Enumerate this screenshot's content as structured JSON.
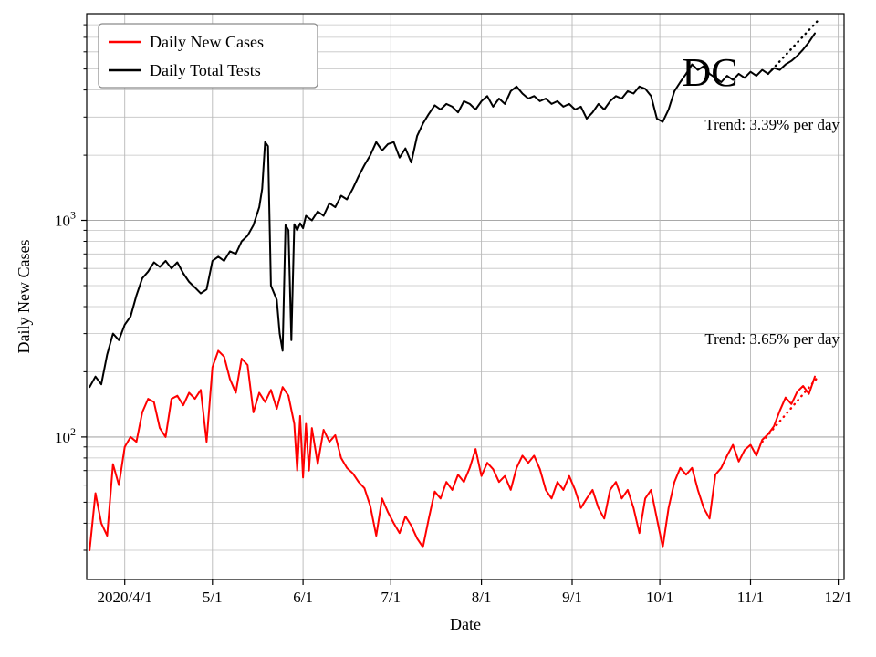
{
  "chart_data": {
    "type": "line",
    "title": "",
    "watermark": "DC",
    "xlabel": "Date",
    "ylabel": "Daily New Cases",
    "yscale": "log",
    "xlim_days": [
      -3,
      256
    ],
    "ylim": [
      22,
      9000
    ],
    "grid": true,
    "x_ticks": [
      {
        "day": 10,
        "label": "2020/4/1"
      },
      {
        "day": 40,
        "label": "5/1"
      },
      {
        "day": 71,
        "label": "6/1"
      },
      {
        "day": 101,
        "label": "7/1"
      },
      {
        "day": 132,
        "label": "8/1"
      },
      {
        "day": 163,
        "label": "9/1"
      },
      {
        "day": 193,
        "label": "10/1"
      },
      {
        "day": 224,
        "label": "11/1"
      },
      {
        "day": 254,
        "label": "12/1"
      }
    ],
    "y_ticks": [
      {
        "value": 100,
        "label": "10",
        "exponent": "2"
      },
      {
        "value": 1000,
        "label": "10",
        "exponent": "3"
      }
    ],
    "legend": {
      "position": "upper-left",
      "entries": [
        {
          "label": "Daily New Cases",
          "color": "#ff0000"
        },
        {
          "label": "Daily Total Tests",
          "color": "#000000"
        }
      ]
    },
    "annotations": [
      {
        "text": "Trend: 3.39% per day",
        "series": "Daily Total Tests"
      },
      {
        "text": "Trend: 3.65% per day",
        "series": "Daily New Cases"
      }
    ],
    "series": [
      {
        "name": "Daily New Cases",
        "color": "#ff0000",
        "x": [
          -2,
          0,
          2,
          4,
          6,
          8,
          10,
          12,
          14,
          16,
          18,
          20,
          22,
          24,
          26,
          28,
          30,
          32,
          34,
          36,
          38,
          40,
          42,
          44,
          46,
          48,
          50,
          52,
          54,
          56,
          58,
          60,
          62,
          64,
          66,
          68,
          69,
          70,
          71,
          72,
          73,
          74,
          76,
          78,
          80,
          82,
          84,
          86,
          88,
          90,
          92,
          94,
          96,
          98,
          100,
          102,
          104,
          106,
          108,
          110,
          112,
          114,
          116,
          118,
          120,
          122,
          124,
          126,
          128,
          130,
          132,
          134,
          136,
          138,
          140,
          142,
          144,
          146,
          148,
          150,
          152,
          154,
          156,
          158,
          160,
          162,
          164,
          166,
          168,
          170,
          172,
          174,
          176,
          178,
          180,
          182,
          184,
          186,
          188,
          190,
          192,
          194,
          196,
          198,
          200,
          202,
          204,
          206,
          208,
          210,
          212,
          214,
          216,
          218,
          220,
          222,
          224,
          226,
          228,
          230,
          232,
          234,
          236,
          238,
          240,
          242,
          244,
          246
        ],
        "y": [
          30,
          55,
          40,
          35,
          75,
          60,
          90,
          100,
          95,
          130,
          150,
          145,
          110,
          100,
          150,
          155,
          140,
          160,
          150,
          165,
          95,
          210,
          250,
          235,
          185,
          160,
          230,
          215,
          130,
          160,
          145,
          165,
          135,
          170,
          155,
          115,
          70,
          125,
          65,
          115,
          70,
          110,
          75,
          108,
          95,
          102,
          80,
          72,
          68,
          62,
          58,
          48,
          35,
          52,
          45,
          40,
          36,
          43,
          39,
          34,
          31,
          42,
          56,
          52,
          62,
          57,
          67,
          62,
          72,
          88,
          66,
          76,
          71,
          62,
          66,
          57,
          72,
          82,
          76,
          82,
          71,
          57,
          52,
          62,
          57,
          66,
          57,
          47,
          52,
          57,
          47,
          42,
          57,
          62,
          52,
          57,
          47,
          36,
          52,
          57,
          42,
          31,
          47,
          62,
          72,
          67,
          72,
          57,
          47,
          42,
          67,
          72,
          82,
          92,
          77,
          87,
          92,
          82,
          97,
          103,
          112,
          132,
          152,
          142,
          162,
          172,
          158,
          190
        ]
      },
      {
        "name": "Daily Total Tests",
        "color": "#000000",
        "x": [
          -2,
          0,
          2,
          4,
          6,
          8,
          10,
          12,
          14,
          16,
          18,
          20,
          22,
          24,
          26,
          28,
          30,
          32,
          34,
          36,
          38,
          40,
          42,
          44,
          46,
          48,
          50,
          52,
          54,
          56,
          57,
          58,
          59,
          60,
          62,
          63,
          64,
          65,
          66,
          67,
          68,
          69,
          70,
          71,
          72,
          74,
          76,
          78,
          80,
          82,
          84,
          86,
          88,
          90,
          92,
          94,
          96,
          98,
          100,
          102,
          104,
          106,
          108,
          110,
          112,
          114,
          116,
          118,
          120,
          122,
          124,
          126,
          128,
          130,
          132,
          134,
          136,
          138,
          140,
          142,
          144,
          146,
          148,
          150,
          152,
          154,
          156,
          158,
          160,
          162,
          164,
          166,
          168,
          170,
          172,
          174,
          176,
          178,
          180,
          182,
          184,
          186,
          188,
          190,
          192,
          194,
          196,
          198,
          200,
          202,
          204,
          206,
          208,
          210,
          212,
          214,
          216,
          218,
          220,
          222,
          224,
          226,
          228,
          230,
          232,
          234,
          236,
          238,
          240,
          242,
          244,
          246
        ],
        "y": [
          170,
          190,
          175,
          240,
          300,
          280,
          330,
          360,
          450,
          540,
          580,
          640,
          610,
          650,
          600,
          640,
          570,
          520,
          490,
          460,
          480,
          650,
          680,
          650,
          720,
          700,
          800,
          850,
          950,
          1150,
          1400,
          2300,
          2200,
          500,
          430,
          300,
          250,
          950,
          900,
          280,
          960,
          900,
          970,
          920,
          1050,
          1000,
          1100,
          1050,
          1200,
          1150,
          1300,
          1250,
          1400,
          1600,
          1800,
          2000,
          2300,
          2100,
          2250,
          2300,
          1950,
          2150,
          1850,
          2450,
          2800,
          3100,
          3400,
          3250,
          3450,
          3350,
          3150,
          3550,
          3450,
          3250,
          3550,
          3750,
          3350,
          3650,
          3450,
          3950,
          4150,
          3850,
          3650,
          3750,
          3550,
          3650,
          3450,
          3550,
          3350,
          3450,
          3250,
          3350,
          2950,
          3150,
          3450,
          3250,
          3550,
          3750,
          3650,
          3950,
          3850,
          4150,
          4050,
          3750,
          2950,
          2850,
          3250,
          3950,
          4350,
          4750,
          5250,
          4950,
          5150,
          4750,
          4550,
          4350,
          4650,
          4450,
          4750,
          4550,
          4850,
          4650,
          4950,
          4750,
          5050,
          4950,
          5250,
          5450,
          5750,
          6150,
          6650,
          7300
        ]
      }
    ],
    "trend_lines": [
      {
        "name": "tests-trend",
        "color": "#000000",
        "rate_percent_per_day": 3.39,
        "x": [
          230,
          247
        ],
        "y": [
          4750,
          8350
        ]
      },
      {
        "name": "cases-trend",
        "color": "#ff0000",
        "rate_percent_per_day": 3.65,
        "x": [
          228,
          247
        ],
        "y": [
          95,
          189
        ]
      }
    ]
  }
}
